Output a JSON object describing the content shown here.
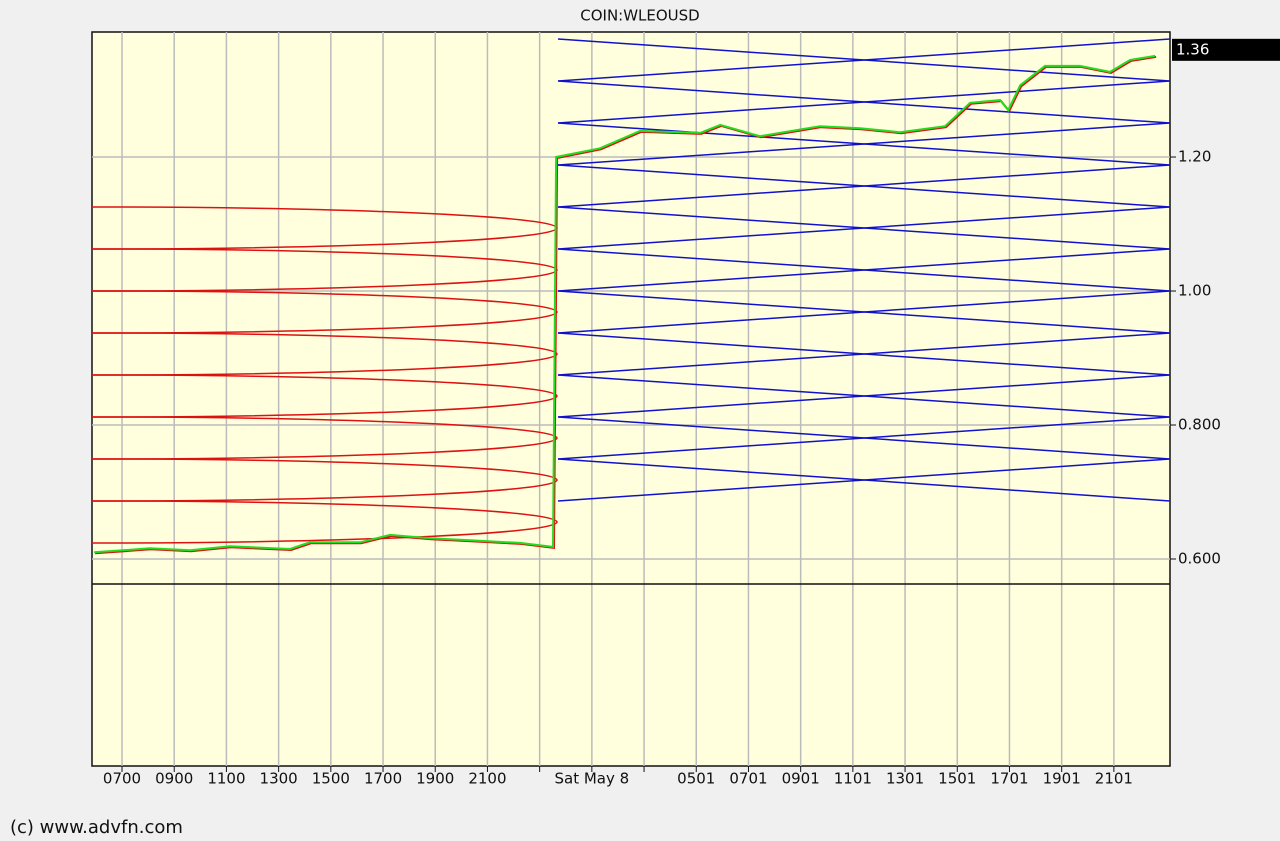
{
  "chart_data": {
    "type": "line",
    "title": "COIN:WLEOUSD",
    "footer": "(c) www.advfn.com",
    "x": [
      5.93,
      8.07,
      9.61,
      11.14,
      13.44,
      14.2,
      16.12,
      17.27,
      18.8,
      20.33,
      22.25,
      23.51,
      23.63,
      25.31,
      26.85,
      29.15,
      29.92,
      31.44,
      33.74,
      35.28,
      36.81,
      38.53,
      39.49,
      40.64,
      40.95,
      41.41,
      42.36,
      43.7,
      44.85,
      45.62,
      46.58
    ],
    "values": [
      0.61,
      0.616,
      0.613,
      0.619,
      0.615,
      0.625,
      0.625,
      0.636,
      0.631,
      0.628,
      0.624,
      0.618,
      1.2,
      1.213,
      1.239,
      1.236,
      1.248,
      1.231,
      1.246,
      1.243,
      1.237,
      1.246,
      1.281,
      1.285,
      1.27,
      1.307,
      1.336,
      1.336,
      1.327,
      1.345,
      1.351
    ],
    "color": "#22dd22",
    "last_price": 1.36,
    "xlim": [
      5.85,
      47.15
    ],
    "xticks": [
      {
        "value": 7,
        "label": "0700"
      },
      {
        "value": 9,
        "label": "0900"
      },
      {
        "value": 11,
        "label": "1100"
      },
      {
        "value": 13,
        "label": "1300"
      },
      {
        "value": 15,
        "label": "1500"
      },
      {
        "value": 17,
        "label": "1700"
      },
      {
        "value": 19,
        "label": "1900"
      },
      {
        "value": 21,
        "label": "2100"
      },
      {
        "value": 23,
        "label": null
      },
      {
        "value": 25,
        "label": "Sat May 8"
      },
      {
        "value": 27,
        "label": null
      },
      {
        "value": 29,
        "label": "0501"
      },
      {
        "value": 31,
        "label": "0701"
      },
      {
        "value": 33,
        "label": "0901"
      },
      {
        "value": 35,
        "label": "1101"
      },
      {
        "value": 37,
        "label": "1301"
      },
      {
        "value": 39,
        "label": "1501"
      },
      {
        "value": 41,
        "label": "1701"
      },
      {
        "value": 43,
        "label": "1901"
      },
      {
        "value": 45,
        "label": "2101"
      }
    ],
    "ylim": [
      0.5627,
      1.3866
    ],
    "yticks": [
      {
        "value": 0.6,
        "label": "0.600"
      },
      {
        "value": 0.8,
        "label": "0.800"
      },
      {
        "value": 1.0,
        "label": "1.00"
      },
      {
        "value": 1.2,
        "label": "1.20"
      }
    ],
    "grid": true
  }
}
